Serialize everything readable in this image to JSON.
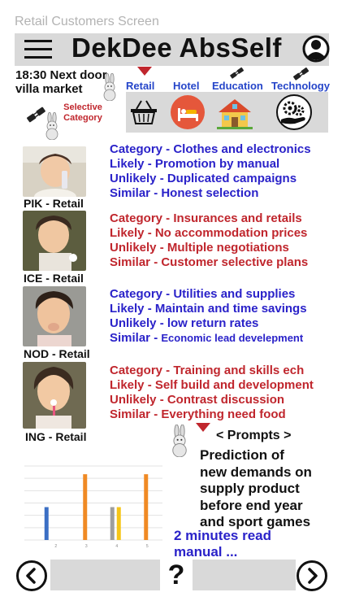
{
  "screen_label": "Retail Customers Screen",
  "header": {
    "title": "DekDee AbsSelf"
  },
  "location": {
    "line1": "18:30 Next door",
    "line2": "villa market"
  },
  "selective": {
    "line1": "Selective",
    "line2": "Category"
  },
  "categories": [
    {
      "label": "Retail",
      "icon": "shopping-basket-icon"
    },
    {
      "label": "Hotel",
      "icon": "hotel-bed-icon"
    },
    {
      "label": "Education",
      "icon": "school-house-icon"
    },
    {
      "label": "Technology",
      "icon": "gears-hand-icon"
    }
  ],
  "customers": [
    {
      "name": "PIK - Retail",
      "color": "#2a22c9",
      "lines": [
        "Category - Clothes and electronics",
        "Likely       -  Promotion by manual",
        "Unlikely   -  Duplicated campaigns",
        "Similar      - Honest selection"
      ]
    },
    {
      "name": "ICE - Retail",
      "color": "#c0262d",
      "lines": [
        "Category - Insurances and retails",
        "Likely    - No accommodation prices",
        "Unlikely - Multiple negotiations",
        "Similar   - Customer selective plans"
      ]
    },
    {
      "name": "NOD - Retail",
      "color": "#2a22c9",
      "lines": [
        "Category - Utilities and supplies",
        "Likely - Maintain and time savings",
        "Unlikely - low return rates",
        "Similar - "
      ],
      "last_suffix": "Economic lead develepment"
    },
    {
      "name": "ING - Retail",
      "color": "#c0262d",
      "lines": [
        "Category - Training and skills ech",
        "Likely - Self build and development",
        "Unlikely - Contrast discussion",
        "Similar - Everything need food"
      ]
    }
  ],
  "prompts": {
    "title": "< Prompts >",
    "lines": [
      "Prediction of",
      "new demands on",
      "supply product",
      "before end year",
      "and sport games"
    ],
    "read_more_line1": "2 minutes read",
    "read_more_line2": "manual ..."
  },
  "chart_data": {
    "type": "bar",
    "categories": [
      "2",
      "3",
      "4",
      "5"
    ],
    "series": [
      {
        "color": "#3b6fc4",
        "values": [
          40,
          0,
          0,
          0
        ]
      },
      {
        "color": "#f08a24",
        "values": [
          0,
          80,
          0,
          80
        ]
      },
      {
        "color": "#9e9e9e",
        "values": [
          0,
          0,
          40,
          0
        ]
      },
      {
        "color": "#f5c518",
        "values": [
          0,
          0,
          40,
          0
        ]
      }
    ],
    "ylim": [
      0,
      90
    ],
    "grid": true
  },
  "footer": {
    "help": "?"
  },
  "colors": {
    "accent_blue": "#2a22c9",
    "accent_red": "#c0262d",
    "panel": "#d9d9d9"
  }
}
